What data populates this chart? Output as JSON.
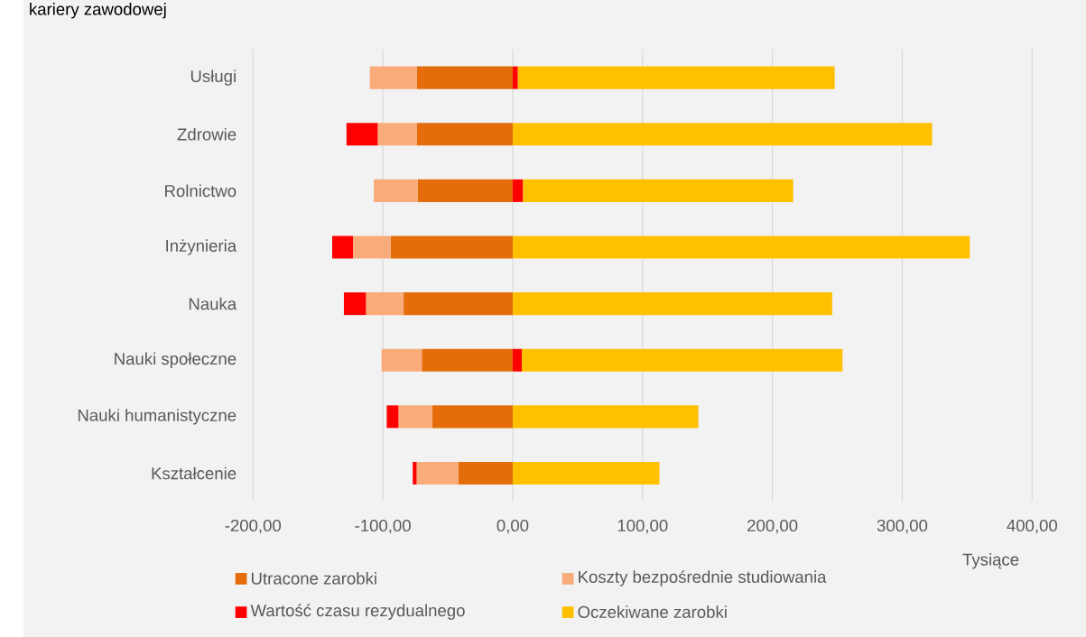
{
  "chart_data": {
    "type": "bar",
    "orientation": "horizontal",
    "stacked": true,
    "title": "kariery zawodowej",
    "xlabel": "Tysiące",
    "categories": [
      "Usługi",
      "Zdrowie",
      "Rolnictwo",
      "Inżynieria",
      "Nauka",
      "Nauki społeczne",
      "Nauki humanistyczne",
      "Kształcenie"
    ],
    "series": [
      {
        "name": "Utracone zarobki",
        "color": "#e46c0a",
        "values": [
          -74,
          -74,
          -73,
          -94,
          -84,
          -70,
          -62,
          -42
        ]
      },
      {
        "name": "Koszty bezpośrednie studiowania",
        "color": "#f9ab7a",
        "values": [
          -36,
          -30,
          -34,
          -29,
          -29,
          -31,
          -26,
          -32
        ]
      },
      {
        "name": "Wartość czasu rezydualnego",
        "color": "#ff0000",
        "values": [
          4,
          -24,
          8,
          -16,
          -17,
          7,
          -9,
          -3
        ]
      },
      {
        "name": "Oczekiwane zarobki",
        "color": "#ffc000",
        "values": [
          244,
          323,
          208,
          352,
          246,
          247,
          143,
          113
        ]
      }
    ],
    "xlim": [
      -200,
      400
    ],
    "xticks": [
      {
        "value": -200,
        "label": "-200,00"
      },
      {
        "value": -100,
        "label": "-100,00"
      },
      {
        "value": 0,
        "label": "0,00"
      },
      {
        "value": 100,
        "label": "100,00"
      },
      {
        "value": 200,
        "label": "200,00"
      },
      {
        "value": 300,
        "label": "300,00"
      },
      {
        "value": 400,
        "label": "400,00"
      }
    ],
    "grid": "x",
    "legend": "bottom"
  }
}
